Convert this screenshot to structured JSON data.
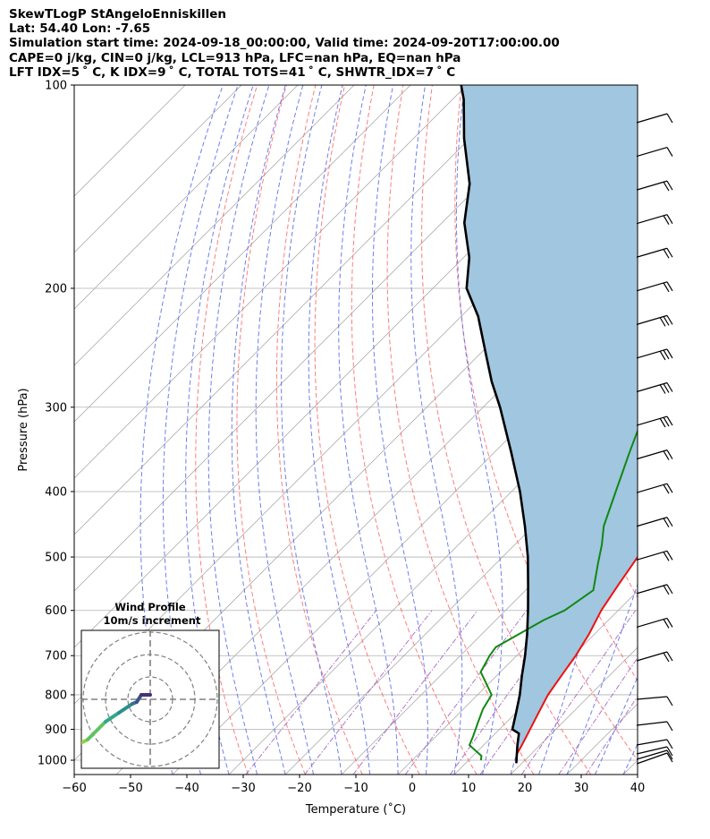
{
  "header": {
    "line1": "SkewTLogP StAngeloEnniskillen",
    "line2": "Lat: 54.40   Lon: -7.65",
    "line3": "Simulation start time: 2024-09-18_00:00:00, Valid time: 2024-09-20T17:00:00.00",
    "line4": "CAPE=0 j/kg, CIN=0 j/kg, LCL=913 hPa, LFC=nan hPa, EQ=nan hPa",
    "line5": "LFT IDX=5 ˚ C, K IDX=9 ˚ C, TOTAL TOTS=41 ˚ C, SHWTR_IDX=7 ˚ C"
  },
  "colors": {
    "temperature": "#ee1111",
    "dewpoint": "#118811",
    "parcel": "#000000",
    "fill": "#a0c6e0",
    "dry_adiabat": "#ff6666",
    "moist_adiabat": "#5566ee",
    "mixing_ratio": "#9955bb",
    "isotherm": "#aaaaaa",
    "grid": "#b0b0b0"
  },
  "chart_data": [
    {
      "type": "line",
      "title": "",
      "xlabel": "Temperature (˚C)",
      "ylabel": "Pressure (hPa)",
      "xlim": [
        -60,
        40
      ],
      "ylim": [
        1050,
        100
      ],
      "y_scale": "log",
      "x_ticks": [
        "−60",
        "−50",
        "−40",
        "−30",
        "−20",
        "−10",
        "0",
        "10",
        "20",
        "30",
        "40"
      ],
      "y_ticks": [
        "1000",
        "900",
        "800",
        "700",
        "600",
        "500",
        "400",
        "300",
        "200",
        "100"
      ],
      "grid": true,
      "skew": "45 deg isotherms, reference 1000 hPa",
      "series": [
        {
          "role": "temperature",
          "points": [
            [
              19.0,
              1010
            ],
            [
              17.5,
              980
            ],
            [
              16.8,
              950
            ],
            [
              16.0,
              920
            ],
            [
              14.0,
              850
            ],
            [
              12.5,
              800
            ],
            [
              11.5,
              750
            ],
            [
              10.5,
              700
            ],
            [
              9.0,
              650
            ],
            [
              7.0,
              600
            ],
            [
              5.5,
              550
            ],
            [
              4.0,
              500
            ],
            [
              2.0,
              450
            ],
            [
              0.5,
              400
            ],
            [
              -1.5,
              350
            ],
            [
              -4.0,
              320
            ],
            [
              -6.5,
              300
            ],
            [
              -8.5,
              280
            ],
            [
              -11.5,
              260
            ],
            [
              -13.5,
              240
            ],
            [
              -14.5,
              230
            ],
            [
              -16.0,
              220
            ],
            [
              -18.0,
              210
            ],
            [
              -19.5,
              200
            ],
            [
              -20.5,
              190
            ],
            [
              -21.5,
              180
            ],
            [
              -22.5,
              170
            ],
            [
              -23.5,
              160
            ],
            [
              -24.0,
              150
            ],
            [
              -24.5,
              140
            ],
            [
              -25.0,
              130
            ],
            [
              -24.8,
              120
            ],
            [
              -25.0,
              110
            ],
            [
              -26.5,
              100
            ]
          ]
        },
        {
          "role": "dewpoint",
          "points": [
            [
              12.2,
              1000
            ],
            [
              11.5,
              985
            ],
            [
              7.5,
              950
            ],
            [
              6.5,
              920
            ],
            [
              5.0,
              880
            ],
            [
              3.5,
              840
            ],
            [
              2.5,
              800
            ],
            [
              -3.5,
              740
            ],
            [
              -4.8,
              700
            ],
            [
              -5.2,
              680
            ],
            [
              -1.5,
              620
            ],
            [
              0.5,
              600
            ],
            [
              2.0,
              560
            ],
            [
              -2.0,
              510
            ],
            [
              -4.5,
              480
            ],
            [
              -7.5,
              450
            ],
            [
              -11.5,
              400
            ],
            [
              -16.0,
              350
            ],
            [
              -21.0,
              300
            ],
            [
              -22.8,
              280
            ],
            [
              -24.0,
              260
            ],
            [
              -24.8,
              240
            ],
            [
              -25.5,
              220
            ],
            [
              -26.8,
              200
            ],
            [
              -29.5,
              180
            ],
            [
              -33.0,
              170
            ],
            [
              -36.5,
              160
            ],
            [
              -39.5,
              150
            ],
            [
              -39.5,
              140
            ],
            [
              -39.0,
              130
            ],
            [
              -39.0,
              120
            ],
            [
              -39.5,
              110
            ],
            [
              -41.0,
              100
            ]
          ]
        },
        {
          "role": "parcel",
          "points": [
            [
              19.0,
              1010
            ],
            [
              16.0,
              950
            ],
            [
              14.2,
              913
            ],
            [
              12.3,
              900
            ],
            [
              10.0,
              850
            ],
            [
              7.5,
              800
            ],
            [
              4.5,
              750
            ],
            [
              1.5,
              700
            ],
            [
              -2.0,
              650
            ],
            [
              -6.0,
              600
            ],
            [
              -10.5,
              550
            ],
            [
              -15.5,
              500
            ],
            [
              -21.5,
              450
            ],
            [
              -28.5,
              400
            ],
            [
              -37.0,
              350
            ],
            [
              -47.0,
              300
            ],
            [
              -53.0,
              275
            ],
            [
              -59.0,
              250
            ],
            [
              -67.0,
              220
            ],
            [
              -74.0,
              200
            ],
            [
              -79.0,
              180
            ],
            [
              -86.0,
              160
            ],
            [
              -92.0,
              140
            ],
            [
              -101.0,
              120
            ],
            [
              -108.0,
              105
            ],
            [
              -111.0,
              100
            ]
          ]
        }
      ],
      "winds_right_column_count": 23
    },
    {
      "type": "scatter",
      "title": "Wind Profile",
      "subtitle": "10m/s increment",
      "rings": 3,
      "hodograph_points": [
        [
          -12.0,
          -7.5
        ],
        [
          -9.0,
          -5.5
        ],
        [
          -7.0,
          -4.5
        ],
        [
          -5.0,
          -2.5
        ],
        [
          -3.5,
          -1.5
        ],
        [
          -2.0,
          -0.5
        ],
        [
          -1.5,
          -0.3
        ],
        [
          -1.0,
          0.5
        ],
        [
          0.0,
          0.5
        ]
      ]
    }
  ]
}
